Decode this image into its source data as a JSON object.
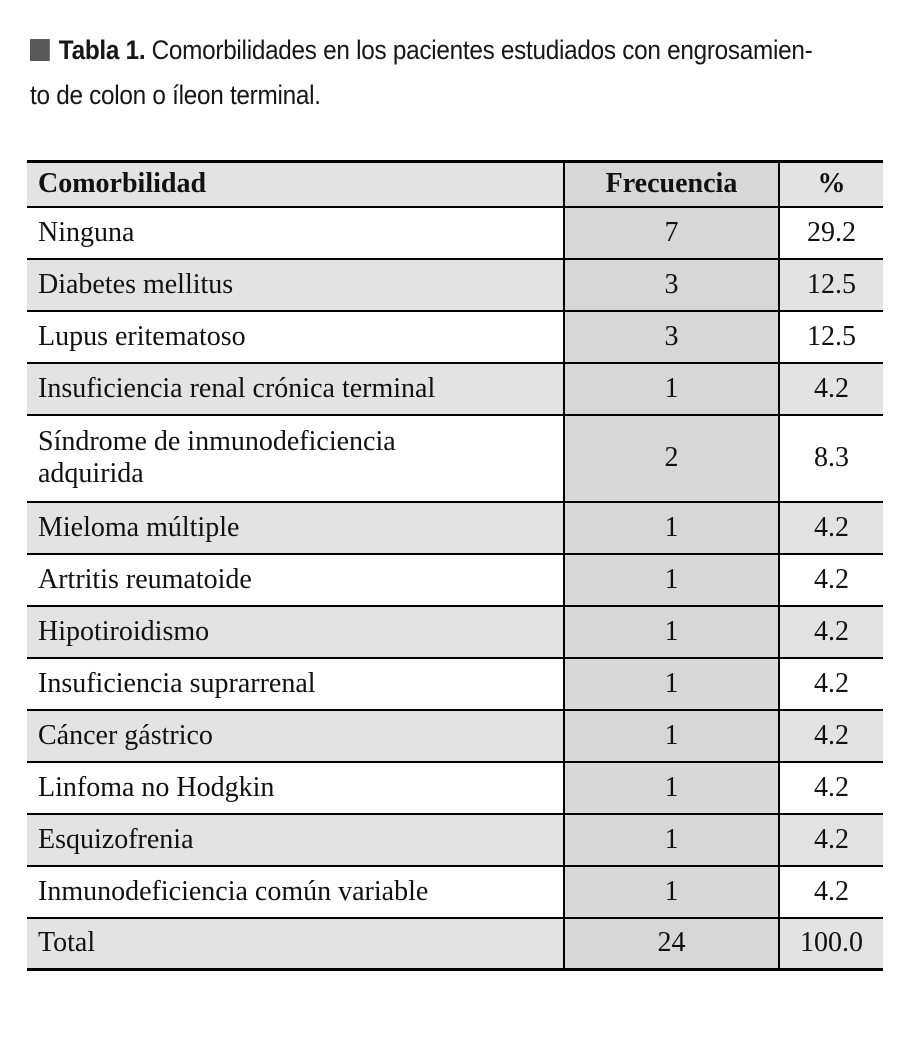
{
  "caption": {
    "marker_icon": "filled-square",
    "label": "Tabla 1.",
    "line1": "Comorbilidades en los pacientes estudiados con engrosamien-",
    "line2": "to de colon o íleon terminal."
  },
  "colors": {
    "caption_marker": "#595959",
    "header_row_bg": "#e3e3e3",
    "alt_row_bg": "#e3e3e3",
    "frequency_column_bg": "#d7d7d7",
    "border": "#000000",
    "text": "#111111"
  },
  "chart_data": {
    "type": "table",
    "title": "Tabla 1. Comorbilidades en los pacientes estudiados con engrosamiento de colon o íleon terminal.",
    "columns": [
      "Comorbilidad",
      "Frecuencia",
      "%"
    ],
    "rows": [
      {
        "comorbilidad": "Ninguna",
        "frecuencia": 7,
        "porcentaje": 29.2
      },
      {
        "comorbilidad": "Diabetes mellitus",
        "frecuencia": 3,
        "porcentaje": 12.5
      },
      {
        "comorbilidad": "Lupus eritematoso",
        "frecuencia": 3,
        "porcentaje": 12.5
      },
      {
        "comorbilidad": "Insuficiencia renal crónica terminal",
        "frecuencia": 1,
        "porcentaje": 4.2
      },
      {
        "comorbilidad": "Síndrome de inmunodeficiencia adquirida",
        "frecuencia": 2,
        "porcentaje": 8.3
      },
      {
        "comorbilidad": "Mieloma múltiple",
        "frecuencia": 1,
        "porcentaje": 4.2
      },
      {
        "comorbilidad": "Artritis reumatoide",
        "frecuencia": 1,
        "porcentaje": 4.2
      },
      {
        "comorbilidad": "Hipotiroidismo",
        "frecuencia": 1,
        "porcentaje": 4.2
      },
      {
        "comorbilidad": "Insuficiencia suprarrenal",
        "frecuencia": 1,
        "porcentaje": 4.2
      },
      {
        "comorbilidad": "Cáncer gástrico",
        "frecuencia": 1,
        "porcentaje": 4.2
      },
      {
        "comorbilidad": "Linfoma no Hodgkin",
        "frecuencia": 1,
        "porcentaje": 4.2
      },
      {
        "comorbilidad": "Esquizofrenia",
        "frecuencia": 1,
        "porcentaje": 4.2
      },
      {
        "comorbilidad": "Inmunodeficiencia común variable",
        "frecuencia": 1,
        "porcentaje": 4.2
      },
      {
        "comorbilidad": "Total",
        "frecuencia": 24,
        "porcentaje": 100.0
      }
    ]
  },
  "table": {
    "headers": [
      "Comorbilidad",
      "Frecuencia",
      "%"
    ],
    "rows": [
      [
        "Ninguna",
        "7",
        "29.2"
      ],
      [
        "Diabetes mellitus",
        "3",
        "12.5"
      ],
      [
        "Lupus eritematoso",
        "3",
        "12.5"
      ],
      [
        "Insuficiencia renal crónica terminal",
        "1",
        "4.2"
      ],
      [
        "Síndrome de inmunodeficiencia\nadquirida",
        "2",
        "8.3"
      ],
      [
        "Mieloma múltiple",
        "1",
        "4.2"
      ],
      [
        "Artritis reumatoide",
        "1",
        "4.2"
      ],
      [
        "Hipotiroidismo",
        "1",
        "4.2"
      ],
      [
        "Insuficiencia suprarrenal",
        "1",
        "4.2"
      ],
      [
        "Cáncer gástrico",
        "1",
        "4.2"
      ],
      [
        "Linfoma no Hodgkin",
        "1",
        "4.2"
      ],
      [
        "Esquizofrenia",
        "1",
        "4.2"
      ],
      [
        "Inmunodeficiencia común variable",
        "1",
        "4.2"
      ],
      [
        "Total",
        "24",
        "100.0"
      ]
    ]
  }
}
